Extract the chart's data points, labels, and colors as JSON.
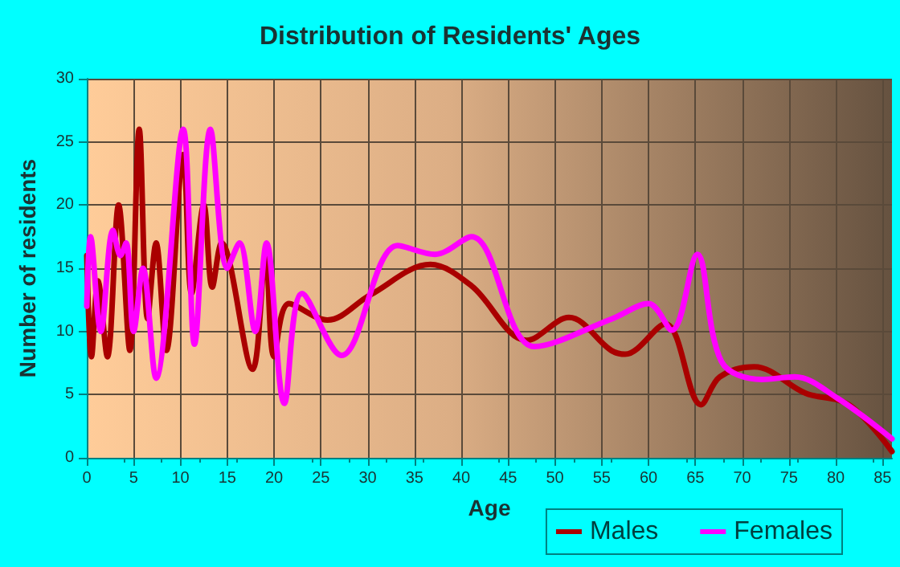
{
  "chart_data": {
    "type": "line",
    "title": "Distribution of Residents' Ages",
    "xlabel": "Age",
    "ylabel": "Number of residents",
    "xlim": [
      0,
      86
    ],
    "xticks": [
      0,
      5,
      10,
      15,
      20,
      25,
      30,
      35,
      40,
      45,
      50,
      55,
      60,
      65,
      70,
      75,
      80,
      85
    ],
    "ylim": [
      0,
      30
    ],
    "yticks": [
      0,
      5,
      10,
      15,
      20,
      25,
      30
    ],
    "grid": true,
    "legend": "bottom right",
    "marker": "none",
    "line_style": "solid",
    "series": [
      {
        "name": "Males",
        "color": "#aa0000",
        "x": [
          0,
          0.5,
          1.2,
          2.2,
          3.4,
          4.6,
          5.6,
          6.5,
          7.4,
          8.5,
          10.3,
          11.2,
          12.5,
          13.4,
          14.4,
          17.7,
          19.1,
          20,
          21.6,
          25.7,
          30.3,
          36.7,
          41.1,
          47,
          51.5,
          56,
          57.5,
          61.8,
          65.6,
          67.6,
          71.3,
          76.8,
          81.4,
          86
        ],
        "values": [
          16,
          8,
          14,
          8,
          20,
          8.5,
          26,
          11,
          17,
          8.5,
          24,
          13,
          20,
          13.5,
          17,
          7,
          16,
          8,
          12.2,
          10.9,
          12.9,
          15.3,
          13.6,
          9.3,
          11.1,
          8.5,
          8.2,
          10.6,
          4.2,
          6.4,
          7.2,
          5.1,
          4.2,
          0.5
        ]
      },
      {
        "name": "Females",
        "color": "#ff00ff",
        "x": [
          0,
          0.4,
          1.5,
          2.8,
          3.6,
          4.2,
          5,
          6,
          7.4,
          10.3,
          11.5,
          13.2,
          15,
          16.3,
          18,
          19.2,
          21.1,
          23,
          27.2,
          33.2,
          37.2,
          41.1,
          47.8,
          56.1,
          60,
          62.5,
          65.2,
          67.8,
          72.1,
          75.6,
          80.2,
          86
        ],
        "values": [
          12,
          17.5,
          10,
          18,
          16,
          17,
          10,
          15,
          6.3,
          26,
          9,
          26,
          15,
          17,
          10,
          17,
          4.3,
          13,
          8.1,
          16.8,
          16.1,
          17.5,
          8.8,
          11,
          12.2,
          10.1,
          16.1,
          7.6,
          6.2,
          6.4,
          4.7,
          1.5
        ]
      }
    ]
  }
}
